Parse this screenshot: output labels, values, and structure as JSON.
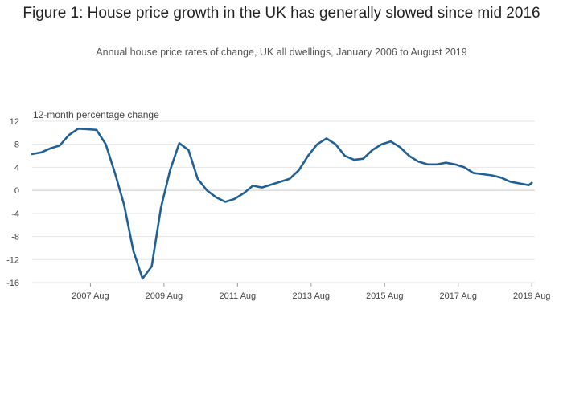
{
  "chart_data": {
    "type": "line",
    "title": "Figure 1: House price growth in the UK has generally slowed since mid 2016",
    "subtitle": "Annual house price rates of change, UK all dwellings, January 2006 to August 2019",
    "ylabel": "12-month percentage change",
    "xlabel": "",
    "ylim": [
      -16,
      12
    ],
    "y_ticks": [
      12,
      8,
      4,
      0,
      -4,
      -8,
      -12,
      -16
    ],
    "x_ticks": [
      {
        "label": "2007 Aug",
        "x": "2007-08"
      },
      {
        "label": "2009 Aug",
        "x": "2009-08"
      },
      {
        "label": "2011 Aug",
        "x": "2011-08"
      },
      {
        "label": "2013 Aug",
        "x": "2013-08"
      },
      {
        "label": "2015 Aug",
        "x": "2015-08"
      },
      {
        "label": "2017 Aug",
        "x": "2017-08"
      },
      {
        "label": "2019 Aug",
        "x": "2019-08"
      }
    ],
    "grid": true,
    "line_color": "#206095",
    "series": [
      {
        "x": [
          "2006-01",
          "2006-04",
          "2006-07",
          "2006-10",
          "2007-01",
          "2007-04",
          "2007-07",
          "2007-10",
          "2008-01",
          "2008-04",
          "2008-07",
          "2008-10",
          "2009-01",
          "2009-04",
          "2009-07",
          "2009-10",
          "2010-01",
          "2010-04",
          "2010-07",
          "2010-10",
          "2011-01",
          "2011-04",
          "2011-07",
          "2011-10",
          "2012-01",
          "2012-04",
          "2012-07",
          "2012-10",
          "2013-01",
          "2013-04",
          "2013-07",
          "2013-10",
          "2014-01",
          "2014-04",
          "2014-07",
          "2014-10",
          "2015-01",
          "2015-04",
          "2015-07",
          "2015-10",
          "2016-01",
          "2016-04",
          "2016-07",
          "2016-10",
          "2017-01",
          "2017-04",
          "2017-07",
          "2017-10",
          "2018-01",
          "2018-04",
          "2018-07",
          "2018-10",
          "2019-01",
          "2019-04",
          "2019-07",
          "2019-08"
        ],
        "values": [
          6.3,
          6.6,
          7.3,
          7.8,
          9.6,
          10.7,
          10.6,
          10.5,
          8.0,
          3.0,
          -2.5,
          -10.5,
          -15.3,
          -13.2,
          -3.0,
          3.5,
          8.2,
          7.0,
          2.0,
          0.0,
          -1.2,
          -2.0,
          -1.5,
          -0.5,
          0.8,
          0.5,
          1.0,
          1.5,
          2.0,
          3.5,
          6.0,
          8.0,
          9.0,
          8.0,
          6.0,
          5.3,
          5.5,
          7.0,
          8.0,
          8.5,
          7.5,
          6.0,
          5.0,
          4.5,
          4.5,
          4.8,
          4.5,
          4.0,
          3.0,
          2.8,
          2.6,
          2.2,
          1.5,
          1.2,
          0.9,
          1.3
        ]
      }
    ]
  }
}
